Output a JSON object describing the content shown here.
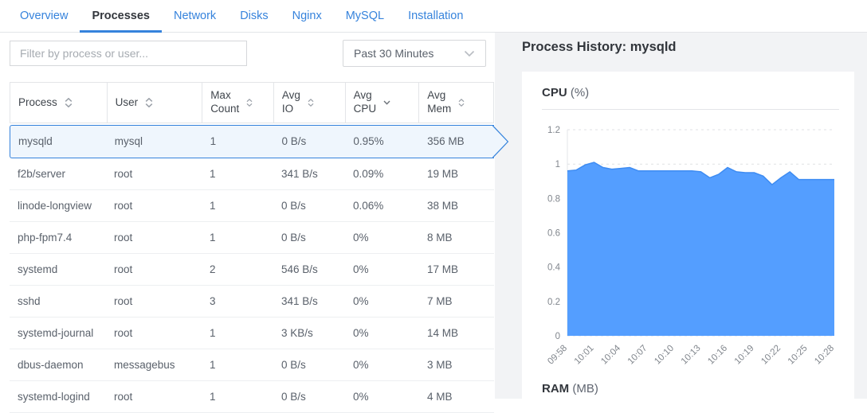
{
  "tabs": [
    "Overview",
    "Processes",
    "Network",
    "Disks",
    "Nginx",
    "MySQL",
    "Installation"
  ],
  "toolbar": {
    "filter_placeholder": "Filter by process or user...",
    "time_range_value": "Past 30 Minutes"
  },
  "table": {
    "columns": [
      {
        "label": "Process",
        "sort": "both"
      },
      {
        "label": "User",
        "sort": "both"
      },
      {
        "label": "Max Count",
        "sort": "both"
      },
      {
        "label": "Avg IO",
        "sort": "both"
      },
      {
        "label": "Avg CPU",
        "sort": "desc"
      },
      {
        "label": "Avg Mem",
        "sort": "both"
      }
    ],
    "rows": [
      {
        "process": "mysqld",
        "user": "mysql",
        "max_count": "1",
        "avg_io": "0 B/s",
        "avg_cpu": "0.95%",
        "avg_mem": "356 MB",
        "selected": true
      },
      {
        "process": "f2b/server",
        "user": "root",
        "max_count": "1",
        "avg_io": "341 B/s",
        "avg_cpu": "0.09%",
        "avg_mem": "19 MB",
        "selected": false
      },
      {
        "process": "linode-longview",
        "user": "root",
        "max_count": "1",
        "avg_io": "0 B/s",
        "avg_cpu": "0.06%",
        "avg_mem": "38 MB",
        "selected": false
      },
      {
        "process": "php-fpm7.4",
        "user": "root",
        "max_count": "1",
        "avg_io": "0 B/s",
        "avg_cpu": "0%",
        "avg_mem": "8 MB",
        "selected": false
      },
      {
        "process": "systemd",
        "user": "root",
        "max_count": "2",
        "avg_io": "546 B/s",
        "avg_cpu": "0%",
        "avg_mem": "17 MB",
        "selected": false
      },
      {
        "process": "sshd",
        "user": "root",
        "max_count": "3",
        "avg_io": "341 B/s",
        "avg_cpu": "0%",
        "avg_mem": "7 MB",
        "selected": false
      },
      {
        "process": "systemd-journal",
        "user": "root",
        "max_count": "1",
        "avg_io": "3 KB/s",
        "avg_cpu": "0%",
        "avg_mem": "14 MB",
        "selected": false
      },
      {
        "process": "dbus-daemon",
        "user": "messagebus",
        "max_count": "1",
        "avg_io": "0 B/s",
        "avg_cpu": "0%",
        "avg_mem": "3 MB",
        "selected": false
      },
      {
        "process": "systemd-logind",
        "user": "root",
        "max_count": "1",
        "avg_io": "0 B/s",
        "avg_cpu": "0%",
        "avg_mem": "4 MB",
        "selected": false
      }
    ]
  },
  "detail": {
    "title": "Process History: mysqld",
    "cpu_title": "CPU",
    "cpu_unit": "(%)",
    "ram_title": "RAM",
    "ram_unit": "(MB)"
  },
  "chart_data": {
    "type": "area",
    "title": "CPU (%)",
    "xlabel": "",
    "ylabel": "CPU %",
    "ylim": [
      0,
      1.2
    ],
    "yticks": [
      0,
      0.2,
      0.4,
      0.6,
      0.8,
      1,
      1.2
    ],
    "grid": true,
    "legend": "none",
    "x": [
      "09:58",
      "09:59",
      "10:00",
      "10:01",
      "10:02",
      "10:03",
      "10:04",
      "10:05",
      "10:06",
      "10:07",
      "10:08",
      "10:09",
      "10:10",
      "10:11",
      "10:12",
      "10:13",
      "10:14",
      "10:15",
      "10:16",
      "10:17",
      "10:18",
      "10:19",
      "10:20",
      "10:21",
      "10:22",
      "10:23",
      "10:24",
      "10:25",
      "10:26",
      "10:27",
      "10:28"
    ],
    "values": [
      0.96,
      0.965,
      0.995,
      1.01,
      0.98,
      0.97,
      0.975,
      0.98,
      0.96,
      0.96,
      0.96,
      0.96,
      0.96,
      0.96,
      0.96,
      0.955,
      0.92,
      0.94,
      0.98,
      0.955,
      0.95,
      0.95,
      0.93,
      0.88,
      0.92,
      0.955,
      0.91,
      0.91,
      0.91,
      0.91,
      0.91
    ],
    "x_ticks": [
      "09:58",
      "10:01",
      "10:04",
      "10:07",
      "10:10",
      "10:13",
      "10:16",
      "10:19",
      "10:22",
      "10:25",
      "10:28"
    ],
    "fill_color": "#549eff",
    "line_color": "#3e8cf2",
    "grid_color": "#dfe1e4",
    "tick_color": "#81868d"
  },
  "colors": {
    "accent_blue": "#3683dc",
    "selected_row_bg": "#eff6fd",
    "panel_bg": "#f2f3f5",
    "border": "#e3e5e8"
  }
}
